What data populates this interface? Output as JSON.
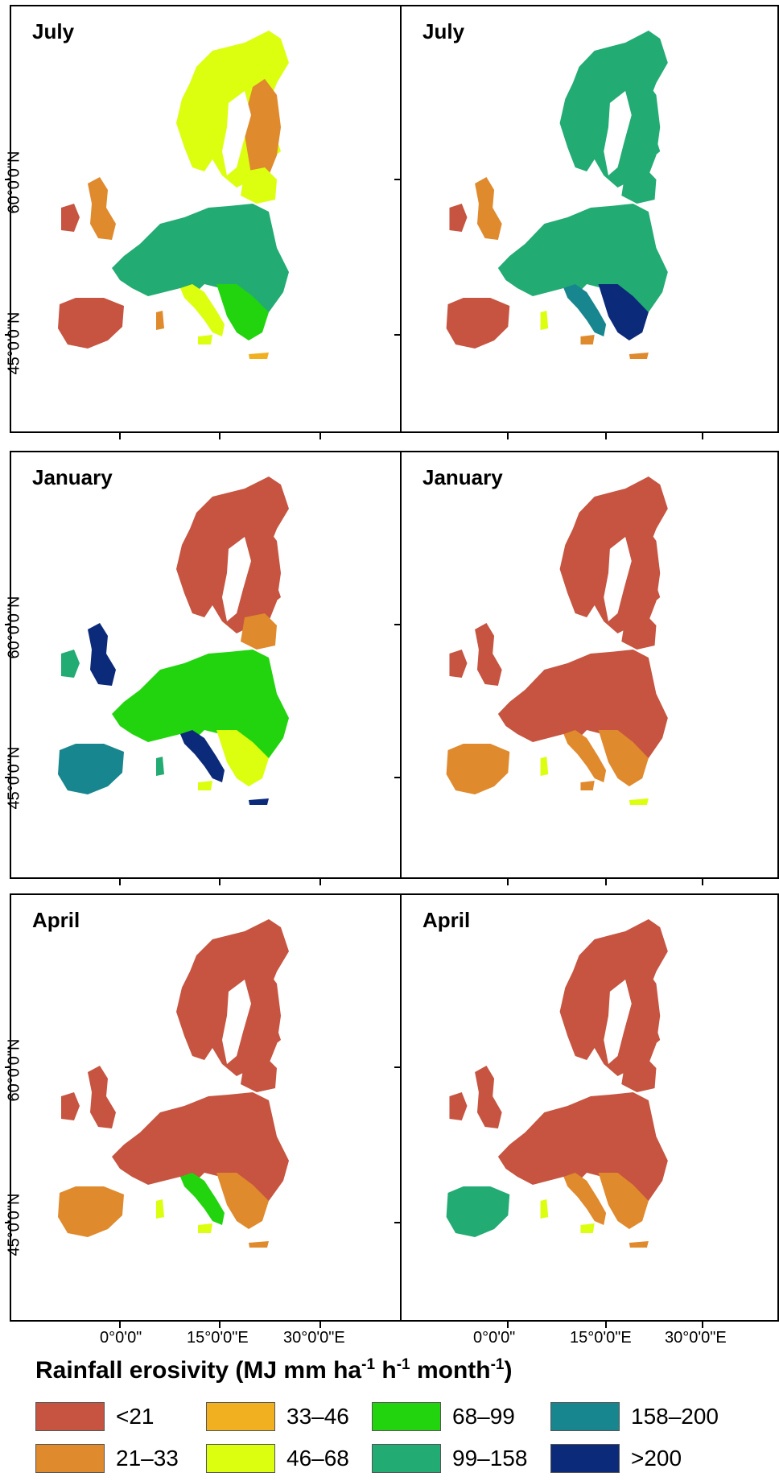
{
  "panels": [
    {
      "month": "July",
      "variant": "july-a"
    },
    {
      "month": "July",
      "variant": "july-b"
    },
    {
      "month": "January",
      "variant": "jan-a"
    },
    {
      "month": "January",
      "variant": "jan-b"
    },
    {
      "month": "April",
      "variant": "apr-a"
    },
    {
      "month": "April",
      "variant": "apr-b"
    }
  ],
  "axes": {
    "lat_labels": [
      "60°0'0\"N",
      "45°0'0\"N"
    ],
    "lon_labels": [
      "0°0'0\"",
      "15°0'0\"E",
      "30°0'0\"E"
    ]
  },
  "legend": {
    "title_main": "Rainfall erosivity (MJ mm ha",
    "sup1": "-1",
    "mid1": " h",
    "sup2": "-1",
    "mid2": " month",
    "sup3": "-1",
    "end": ")",
    "items": [
      {
        "label": "<21",
        "color": "#c65440"
      },
      {
        "label": "33–46",
        "color": "#f0b020"
      },
      {
        "label": "68–99",
        "color": "#22d40e"
      },
      {
        "label": "158–200",
        "color": "#17868f"
      },
      {
        "label": "21–33",
        "color": "#e08a2e"
      },
      {
        "label": "46–68",
        "color": "#dcff10"
      },
      {
        "label": "99–158",
        "color": "#22ab72"
      },
      {
        "label": ">200",
        "color": "#0c2a7a"
      }
    ]
  }
}
